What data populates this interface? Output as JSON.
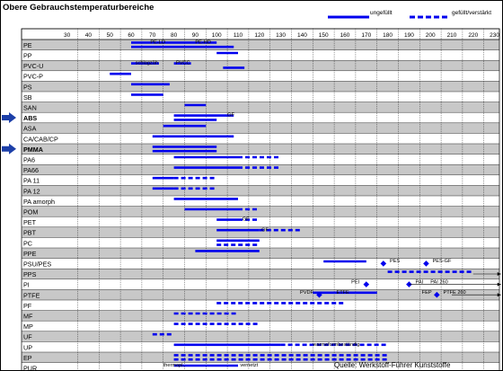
{
  "title": "Obere Gebrauchstemperaturbereiche",
  "legend": {
    "unfilled": "ungefüllt",
    "filled": "gefüllt/verstärkt"
  },
  "source": "Quelle:  Werkstoff-Führer Kunststoffe",
  "colors": {
    "bar": "#0000ee",
    "row_shade": "#c8c8c8",
    "grid": "#000000",
    "arrow": "#1c3fa8"
  },
  "chart_data": {
    "type": "range-bar",
    "title": "Obere Gebrauchstemperaturbereiche",
    "x_unit": "°C",
    "x_ticks": [
      30,
      40,
      50,
      60,
      70,
      80,
      90,
      100,
      110,
      120,
      130,
      140,
      150,
      160,
      170,
      180,
      190,
      200,
      210,
      220,
      230
    ],
    "xlim": [
      20,
      235
    ],
    "materials": [
      "PE",
      "PP",
      "PVC-U",
      "PVC-P",
      "PS",
      "SB",
      "SAN",
      "ABS",
      "ASA",
      "CA/CAB/CP",
      "PMMA",
      "PA6",
      "PA66",
      "PA 11",
      "PA 12",
      "PA amorph",
      "POM",
      "PET",
      "PBT",
      "PC",
      "PPE",
      "PSU/PES",
      "PPS",
      "PI",
      "PTFE",
      "PF",
      "MF",
      "MP",
      "UF",
      "UP",
      "EP",
      "PUR"
    ],
    "shaded_rows": [
      0,
      2,
      4,
      6,
      8,
      10,
      12,
      14,
      16,
      18,
      20,
      22,
      24,
      26,
      28,
      30
    ],
    "bold_rows": [
      7,
      10
    ],
    "arrow_rows": [
      7,
      10
    ],
    "segments": [
      {
        "row": 0,
        "lane": 0,
        "x1": 60,
        "x2": 100,
        "style": "unfilled"
      },
      {
        "row": 0,
        "lane": 1,
        "x1": 60,
        "x2": 108,
        "style": "unfilled"
      },
      {
        "row": 1,
        "lane": 0,
        "x1": 100,
        "x2": 110,
        "style": "unfilled"
      },
      {
        "row": 2,
        "lane": 0,
        "x1": 60,
        "x2": 73,
        "style": "unfilled"
      },
      {
        "row": 2,
        "lane": 0,
        "x1": 80,
        "x2": 88,
        "style": "unfilled"
      },
      {
        "row": 2,
        "lane": 1,
        "x1": 103,
        "x2": 113,
        "style": "unfilled"
      },
      {
        "row": 3,
        "lane": 0,
        "x1": 50,
        "x2": 60,
        "style": "unfilled"
      },
      {
        "row": 4,
        "lane": 0,
        "x1": 60,
        "x2": 78,
        "style": "unfilled"
      },
      {
        "row": 5,
        "lane": 0,
        "x1": 60,
        "x2": 75,
        "style": "unfilled"
      },
      {
        "row": 6,
        "lane": 0,
        "x1": 85,
        "x2": 95,
        "style": "unfilled"
      },
      {
        "row": 7,
        "lane": 0,
        "x1": 80,
        "x2": 108,
        "style": "unfilled"
      },
      {
        "row": 7,
        "lane": 1,
        "x1": 80,
        "x2": 100,
        "style": "unfilled"
      },
      {
        "row": 8,
        "lane": 0,
        "x1": 75,
        "x2": 95,
        "style": "unfilled"
      },
      {
        "row": 9,
        "lane": 0,
        "x1": 70,
        "x2": 108,
        "style": "unfilled"
      },
      {
        "row": 10,
        "lane": 0,
        "x1": 70,
        "x2": 100,
        "style": "unfilled"
      },
      {
        "row": 10,
        "lane": 1,
        "x1": 70,
        "x2": 100,
        "style": "unfilled"
      },
      {
        "row": 11,
        "lane": 0,
        "x1": 80,
        "x2": 110,
        "style": "unfilled"
      },
      {
        "row": 11,
        "lane": 0,
        "x1": 110,
        "x2": 130,
        "style": "filled"
      },
      {
        "row": 12,
        "lane": 0,
        "x1": 80,
        "x2": 110,
        "style": "unfilled"
      },
      {
        "row": 12,
        "lane": 0,
        "x1": 110,
        "x2": 130,
        "style": "filled"
      },
      {
        "row": 13,
        "lane": 0,
        "x1": 70,
        "x2": 80,
        "style": "unfilled"
      },
      {
        "row": 13,
        "lane": 0,
        "x1": 80,
        "x2": 100,
        "style": "filled"
      },
      {
        "row": 14,
        "lane": 0,
        "x1": 70,
        "x2": 80,
        "style": "unfilled"
      },
      {
        "row": 14,
        "lane": 0,
        "x1": 80,
        "x2": 100,
        "style": "filled"
      },
      {
        "row": 15,
        "lane": 0,
        "x1": 80,
        "x2": 110,
        "style": "unfilled"
      },
      {
        "row": 16,
        "lane": 0,
        "x1": 85,
        "x2": 110,
        "style": "unfilled"
      },
      {
        "row": 16,
        "lane": 0,
        "x1": 110,
        "x2": 120,
        "style": "filled"
      },
      {
        "row": 17,
        "lane": 0,
        "x1": 100,
        "x2": 110,
        "style": "unfilled"
      },
      {
        "row": 17,
        "lane": 0,
        "x1": 110,
        "x2": 120,
        "style": "filled"
      },
      {
        "row": 18,
        "lane": 0,
        "x1": 100,
        "x2": 120,
        "style": "unfilled"
      },
      {
        "row": 18,
        "lane": 0,
        "x1": 120,
        "x2": 140,
        "style": "filled"
      },
      {
        "row": 19,
        "lane": 0,
        "x1": 100,
        "x2": 120,
        "style": "unfilled"
      },
      {
        "row": 19,
        "lane": 1,
        "x1": 100,
        "x2": 120,
        "style": "filled"
      },
      {
        "row": 20,
        "lane": 0,
        "x1": 90,
        "x2": 120,
        "style": "unfilled"
      },
      {
        "row": 21,
        "lane": 0,
        "x1": 150,
        "x2": 170,
        "style": "unfilled"
      },
      {
        "row": 22,
        "lane": 0,
        "x1": 180,
        "x2": 220,
        "style": "filled"
      },
      {
        "row": 24,
        "lane": 0,
        "x1": 145,
        "x2": 175,
        "style": "unfilled"
      },
      {
        "row": 25,
        "lane": 0,
        "x1": 100,
        "x2": 160,
        "style": "filled"
      },
      {
        "row": 26,
        "lane": 0,
        "x1": 80,
        "x2": 110,
        "style": "filled"
      },
      {
        "row": 27,
        "lane": 0,
        "x1": 80,
        "x2": 120,
        "style": "filled"
      },
      {
        "row": 28,
        "lane": 0,
        "x1": 70,
        "x2": 80,
        "style": "filled"
      },
      {
        "row": 29,
        "lane": 0,
        "x1": 80,
        "x2": 130,
        "style": "unfilled"
      },
      {
        "row": 29,
        "lane": 0,
        "x1": 130,
        "x2": 180,
        "style": "filled"
      },
      {
        "row": 30,
        "lane": 0,
        "x1": 80,
        "x2": 180,
        "style": "filled"
      },
      {
        "row": 30,
        "lane": 1,
        "x1": 80,
        "x2": 180,
        "style": "filled"
      },
      {
        "row": 31,
        "lane": 0,
        "x1": 80,
        "x2": 110,
        "style": "unfilled"
      }
    ],
    "points": [
      {
        "row": 21,
        "x": 178
      },
      {
        "row": 21,
        "x": 198
      },
      {
        "row": 23,
        "x": 170
      },
      {
        "row": 23,
        "x": 190
      },
      {
        "row": 24,
        "x": 148
      },
      {
        "row": 24,
        "x": 203
      }
    ],
    "arrows": [
      {
        "row": 22,
        "x1": 220,
        "x2": 233
      },
      {
        "row": 23,
        "x1": 190,
        "x2": 233
      },
      {
        "row": 24,
        "x1": 210,
        "x2": 233
      }
    ],
    "annotations": [
      {
        "row": 0,
        "x": 69,
        "text": "PE-LD"
      },
      {
        "row": 0,
        "x": 90,
        "text": "PE-HD"
      },
      {
        "row": 2,
        "x": 62,
        "text": "schlagzäh"
      },
      {
        "row": 2,
        "x": 81,
        "text": "PVCC"
      },
      {
        "row": 7,
        "x": 105,
        "text": "GF"
      },
      {
        "row": 17,
        "x": 112,
        "text": "GF"
      },
      {
        "row": 18,
        "x": 121,
        "text": "GF"
      },
      {
        "row": 21,
        "x": 181,
        "text": "PES"
      },
      {
        "row": 21,
        "x": 201,
        "text": "PES-GF"
      },
      {
        "row": 23,
        "x": 163,
        "text": "PEI"
      },
      {
        "row": 23,
        "x": 193,
        "text": "PAI"
      },
      {
        "row": 23,
        "x": 200,
        "text": "PAI  260"
      },
      {
        "row": 24,
        "x": 139,
        "text": "PVDF"
      },
      {
        "row": 24,
        "x": 156,
        "text": "ETFE"
      },
      {
        "row": 24,
        "x": 196,
        "text": "FEP"
      },
      {
        "row": 24,
        "x": 206,
        "text": "PTFE  260"
      },
      {
        "row": 29,
        "x": 145,
        "text": "warmeformbeständig"
      },
      {
        "row": 31,
        "x": 75,
        "text": "thermopl."
      },
      {
        "row": 31,
        "x": 111,
        "text": "vernetzt"
      }
    ]
  }
}
